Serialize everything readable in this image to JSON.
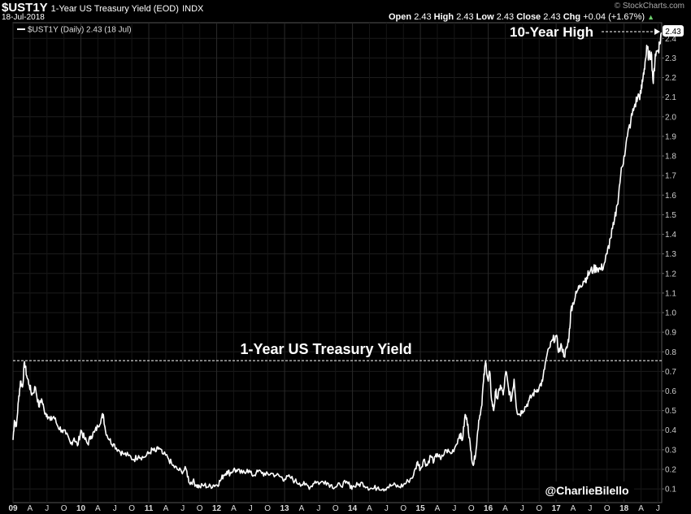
{
  "header": {
    "symbol": "$UST1Y",
    "description": "1-Year US Treasury Yield (EOD)",
    "exchange": "INDX",
    "date": "18-Jul-2018",
    "open_label": "Open",
    "open": "2.43",
    "high_label": "High",
    "high": "2.43",
    "low_label": "Low",
    "low": "2.43",
    "close_label": "Close",
    "close": "2.43",
    "chg_label": "Chg",
    "chg": "+0.04 (+1.67%)",
    "brand": "StockCharts.com"
  },
  "legend": {
    "text": "$UST1Y (Daily) 2.43 (18 Jul)"
  },
  "colors": {
    "background": "#000000",
    "line": "#ffffff",
    "grid": "#222222",
    "up": "#6fcf6f"
  },
  "annotations": {
    "ten_year_high": "10-Year High",
    "series_title": "1-Year US Treasury Yield",
    "credit": "@CharlieBilello",
    "last_value": "2.43"
  },
  "chart_data": {
    "type": "line",
    "ylim": [
      0.03,
      2.48
    ],
    "reference_line": 0.755,
    "y_ticks": [
      "0.1",
      "0.2",
      "0.3",
      "0.4",
      "0.5",
      "0.6",
      "0.7",
      "0.8",
      "0.9",
      "1.0",
      "1.1",
      "1.2",
      "1.3",
      "1.4",
      "1.5",
      "1.6",
      "1.7",
      "1.8",
      "1.9",
      "2.0",
      "2.1",
      "2.2",
      "2.3",
      "2.4"
    ],
    "x_ticks": [
      {
        "label": "09",
        "major": true,
        "t": 2009.0
      },
      {
        "label": "A",
        "t": 2009.25
      },
      {
        "label": "J",
        "t": 2009.5
      },
      {
        "label": "O",
        "t": 2009.75
      },
      {
        "label": "10",
        "major": true,
        "t": 2010.0
      },
      {
        "label": "A",
        "t": 2010.25
      },
      {
        "label": "J",
        "t": 2010.5
      },
      {
        "label": "O",
        "t": 2010.75
      },
      {
        "label": "11",
        "major": true,
        "t": 2011.0
      },
      {
        "label": "A",
        "t": 2011.25
      },
      {
        "label": "J",
        "t": 2011.5
      },
      {
        "label": "O",
        "t": 2011.75
      },
      {
        "label": "12",
        "major": true,
        "t": 2012.0
      },
      {
        "label": "A",
        "t": 2012.25
      },
      {
        "label": "J",
        "t": 2012.5
      },
      {
        "label": "O",
        "t": 2012.75
      },
      {
        "label": "13",
        "major": true,
        "t": 2013.0
      },
      {
        "label": "A",
        "t": 2013.25
      },
      {
        "label": "J",
        "t": 2013.5
      },
      {
        "label": "O",
        "t": 2013.75
      },
      {
        "label": "14",
        "major": true,
        "t": 2014.0
      },
      {
        "label": "A",
        "t": 2014.25
      },
      {
        "label": "J",
        "t": 2014.5
      },
      {
        "label": "O",
        "t": 2014.75
      },
      {
        "label": "15",
        "major": true,
        "t": 2015.0
      },
      {
        "label": "A",
        "t": 2015.25
      },
      {
        "label": "J",
        "t": 2015.5
      },
      {
        "label": "O",
        "t": 2015.75
      },
      {
        "label": "16",
        "major": true,
        "t": 2016.0
      },
      {
        "label": "A",
        "t": 2016.25
      },
      {
        "label": "J",
        "t": 2016.5
      },
      {
        "label": "O",
        "t": 2016.75
      },
      {
        "label": "17",
        "major": true,
        "t": 2017.0
      },
      {
        "label": "A",
        "t": 2017.25
      },
      {
        "label": "J",
        "t": 2017.5
      },
      {
        "label": "O",
        "t": 2017.75
      },
      {
        "label": "18",
        "major": true,
        "t": 2018.0
      },
      {
        "label": "A",
        "t": 2018.25
      },
      {
        "label": "J",
        "t": 2018.5
      }
    ],
    "series": [
      {
        "values": [
          [
            2009.0,
            0.35
          ],
          [
            2009.02,
            0.45
          ],
          [
            2009.05,
            0.42
          ],
          [
            2009.08,
            0.55
          ],
          [
            2009.11,
            0.65
          ],
          [
            2009.14,
            0.62
          ],
          [
            2009.17,
            0.75
          ],
          [
            2009.2,
            0.68
          ],
          [
            2009.24,
            0.63
          ],
          [
            2009.28,
            0.58
          ],
          [
            2009.33,
            0.62
          ],
          [
            2009.38,
            0.52
          ],
          [
            2009.42,
            0.56
          ],
          [
            2009.46,
            0.5
          ],
          [
            2009.5,
            0.48
          ],
          [
            2009.55,
            0.45
          ],
          [
            2009.6,
            0.47
          ],
          [
            2009.66,
            0.42
          ],
          [
            2009.72,
            0.4
          ],
          [
            2009.78,
            0.38
          ],
          [
            2009.85,
            0.33
          ],
          [
            2009.9,
            0.36
          ],
          [
            2009.95,
            0.32
          ],
          [
            2010.0,
            0.4
          ],
          [
            2010.05,
            0.36
          ],
          [
            2010.1,
            0.33
          ],
          [
            2010.15,
            0.37
          ],
          [
            2010.2,
            0.39
          ],
          [
            2010.25,
            0.42
          ],
          [
            2010.3,
            0.46
          ],
          [
            2010.33,
            0.48
          ],
          [
            2010.36,
            0.4
          ],
          [
            2010.42,
            0.35
          ],
          [
            2010.48,
            0.33
          ],
          [
            2010.55,
            0.3
          ],
          [
            2010.62,
            0.28
          ],
          [
            2010.7,
            0.27
          ],
          [
            2010.78,
            0.25
          ],
          [
            2010.85,
            0.27
          ],
          [
            2010.92,
            0.26
          ],
          [
            2011.0,
            0.28
          ],
          [
            2011.05,
            0.3
          ],
          [
            2011.1,
            0.29
          ],
          [
            2011.15,
            0.31
          ],
          [
            2011.2,
            0.28
          ],
          [
            2011.28,
            0.26
          ],
          [
            2011.35,
            0.22
          ],
          [
            2011.42,
            0.2
          ],
          [
            2011.48,
            0.19
          ],
          [
            2011.55,
            0.2
          ],
          [
            2011.6,
            0.13
          ],
          [
            2011.65,
            0.14
          ],
          [
            2011.7,
            0.12
          ],
          [
            2011.75,
            0.11
          ],
          [
            2011.82,
            0.12
          ],
          [
            2011.88,
            0.11
          ],
          [
            2011.95,
            0.12
          ],
          [
            2012.0,
            0.12
          ],
          [
            2012.05,
            0.14
          ],
          [
            2012.1,
            0.17
          ],
          [
            2012.15,
            0.19
          ],
          [
            2012.2,
            0.18
          ],
          [
            2012.25,
            0.2
          ],
          [
            2012.3,
            0.19
          ],
          [
            2012.38,
            0.18
          ],
          [
            2012.45,
            0.2
          ],
          [
            2012.52,
            0.17
          ],
          [
            2012.58,
            0.18
          ],
          [
            2012.65,
            0.19
          ],
          [
            2012.72,
            0.17
          ],
          [
            2012.8,
            0.18
          ],
          [
            2012.88,
            0.17
          ],
          [
            2012.95,
            0.16
          ],
          [
            2013.0,
            0.15
          ],
          [
            2013.08,
            0.16
          ],
          [
            2013.15,
            0.14
          ],
          [
            2013.22,
            0.13
          ],
          [
            2013.3,
            0.12
          ],
          [
            2013.38,
            0.11
          ],
          [
            2013.45,
            0.14
          ],
          [
            2013.52,
            0.13
          ],
          [
            2013.6,
            0.14
          ],
          [
            2013.68,
            0.12
          ],
          [
            2013.75,
            0.11
          ],
          [
            2013.82,
            0.12
          ],
          [
            2013.9,
            0.13
          ],
          [
            2013.96,
            0.12
          ],
          [
            2014.0,
            0.11
          ],
          [
            2014.08,
            0.12
          ],
          [
            2014.15,
            0.13
          ],
          [
            2014.22,
            0.11
          ],
          [
            2014.3,
            0.1
          ],
          [
            2014.38,
            0.11
          ],
          [
            2014.45,
            0.1
          ],
          [
            2014.52,
            0.11
          ],
          [
            2014.6,
            0.12
          ],
          [
            2014.68,
            0.11
          ],
          [
            2014.75,
            0.12
          ],
          [
            2014.82,
            0.14
          ],
          [
            2014.9,
            0.17
          ],
          [
            2014.96,
            0.24
          ],
          [
            2015.0,
            0.2
          ],
          [
            2015.05,
            0.25
          ],
          [
            2015.1,
            0.22
          ],
          [
            2015.15,
            0.27
          ],
          [
            2015.2,
            0.24
          ],
          [
            2015.25,
            0.28
          ],
          [
            2015.3,
            0.25
          ],
          [
            2015.38,
            0.3
          ],
          [
            2015.45,
            0.28
          ],
          [
            2015.52,
            0.32
          ],
          [
            2015.58,
            0.38
          ],
          [
            2015.62,
            0.35
          ],
          [
            2015.66,
            0.48
          ],
          [
            2015.7,
            0.43
          ],
          [
            2015.74,
            0.3
          ],
          [
            2015.78,
            0.22
          ],
          [
            2015.82,
            0.3
          ],
          [
            2015.86,
            0.45
          ],
          [
            2015.9,
            0.52
          ],
          [
            2015.93,
            0.65
          ],
          [
            2015.96,
            0.75
          ],
          [
            2016.0,
            0.65
          ],
          [
            2016.02,
            0.7
          ],
          [
            2016.05,
            0.55
          ],
          [
            2016.08,
            0.5
          ],
          [
            2016.11,
            0.6
          ],
          [
            2016.14,
            0.56
          ],
          [
            2016.18,
            0.63
          ],
          [
            2016.22,
            0.58
          ],
          [
            2016.26,
            0.7
          ],
          [
            2016.3,
            0.61
          ],
          [
            2016.34,
            0.55
          ],
          [
            2016.38,
            0.66
          ],
          [
            2016.42,
            0.5
          ],
          [
            2016.46,
            0.48
          ],
          [
            2016.5,
            0.5
          ],
          [
            2016.55,
            0.52
          ],
          [
            2016.6,
            0.55
          ],
          [
            2016.65,
            0.58
          ],
          [
            2016.7,
            0.6
          ],
          [
            2016.75,
            0.62
          ],
          [
            2016.8,
            0.65
          ],
          [
            2016.85,
            0.76
          ],
          [
            2016.9,
            0.82
          ],
          [
            2016.95,
            0.86
          ],
          [
            2017.0,
            0.88
          ],
          [
            2017.04,
            0.8
          ],
          [
            2017.08,
            0.83
          ],
          [
            2017.12,
            0.78
          ],
          [
            2017.16,
            0.82
          ],
          [
            2017.19,
            0.88
          ],
          [
            2017.22,
            1.02
          ],
          [
            2017.25,
            1.05
          ],
          [
            2017.3,
            1.1
          ],
          [
            2017.35,
            1.14
          ],
          [
            2017.4,
            1.16
          ],
          [
            2017.45,
            1.18
          ],
          [
            2017.5,
            1.21
          ],
          [
            2017.55,
            1.22
          ],
          [
            2017.6,
            1.23
          ],
          [
            2017.65,
            1.22
          ],
          [
            2017.7,
            1.24
          ],
          [
            2017.75,
            1.3
          ],
          [
            2017.8,
            1.38
          ],
          [
            2017.85,
            1.45
          ],
          [
            2017.9,
            1.55
          ],
          [
            2017.95,
            1.7
          ],
          [
            2018.0,
            1.8
          ],
          [
            2018.05,
            1.9
          ],
          [
            2018.1,
            1.98
          ],
          [
            2018.15,
            2.05
          ],
          [
            2018.2,
            2.1
          ],
          [
            2018.25,
            2.12
          ],
          [
            2018.28,
            2.2
          ],
          [
            2018.31,
            2.28
          ],
          [
            2018.34,
            2.35
          ],
          [
            2018.37,
            2.3
          ],
          [
            2018.4,
            2.33
          ],
          [
            2018.43,
            2.17
          ],
          [
            2018.46,
            2.32
          ],
          [
            2018.5,
            2.34
          ],
          [
            2018.53,
            2.38
          ],
          [
            2018.55,
            2.43
          ]
        ]
      }
    ]
  }
}
